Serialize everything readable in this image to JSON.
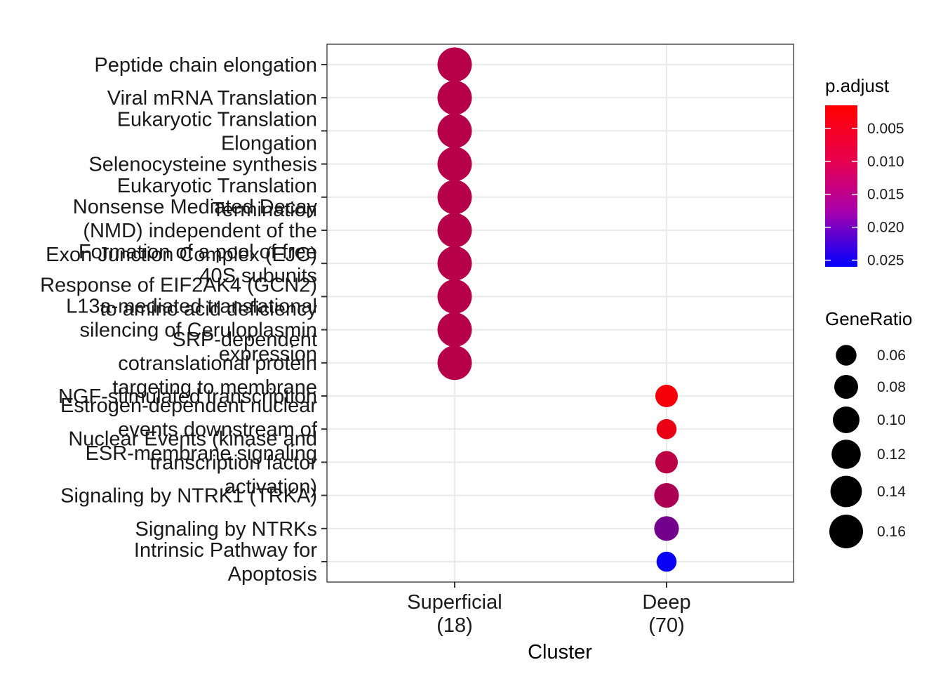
{
  "chart_data": {
    "type": "scatter",
    "xlabel": "Cluster",
    "x_categories": [
      {
        "line1": "Superficial",
        "line2": "(18)"
      },
      {
        "line1": "Deep",
        "line2": "(70)"
      }
    ],
    "y_categories": [
      [
        "Peptide chain elongation"
      ],
      [
        "Viral mRNA Translation"
      ],
      [
        "Eukaryotic Translation",
        "Elongation"
      ],
      [
        "Selenocysteine synthesis"
      ],
      [
        "Eukaryotic Translation",
        "Termination"
      ],
      [
        "Nonsense Mediated Decay",
        "(NMD) independent of the",
        "Exon Junction Complex (EJC)"
      ],
      [
        "Formation of a pool of free",
        "40S subunits"
      ],
      [
        "Response of EIF2AK4 (GCN2)",
        "to amino acid deficiency"
      ],
      [
        "L13a-mediated translational",
        "silencing of Ceruloplasmin",
        "expression"
      ],
      [
        "SRP-dependent",
        "cotranslational protein",
        "targeting to membrane"
      ],
      [
        "NGF-stimulated transcription"
      ],
      [
        "Estrogen-dependent nuclear",
        "events downstream of",
        "ESR-membrane signaling"
      ],
      [
        "Nuclear Events (kinase and",
        "transcription factor",
        "activation)"
      ],
      [
        "Signaling by NTRK1 (TRKA)"
      ],
      [
        "Signaling by NTRKs"
      ],
      [
        "Intrinsic Pathway for",
        "Apoptosis"
      ]
    ],
    "points": [
      {
        "cluster": "Superficial (18)",
        "term": "Peptide chain elongation",
        "gene_ratio": 0.167,
        "p_adjust": 0.0085
      },
      {
        "cluster": "Superficial (18)",
        "term": "Viral mRNA Translation",
        "gene_ratio": 0.167,
        "p_adjust": 0.0085
      },
      {
        "cluster": "Superficial (18)",
        "term": "Eukaryotic Translation Elongation",
        "gene_ratio": 0.167,
        "p_adjust": 0.0085
      },
      {
        "cluster": "Superficial (18)",
        "term": "Selenocysteine synthesis",
        "gene_ratio": 0.167,
        "p_adjust": 0.0085
      },
      {
        "cluster": "Superficial (18)",
        "term": "Eukaryotic Translation Termination",
        "gene_ratio": 0.167,
        "p_adjust": 0.0085
      },
      {
        "cluster": "Superficial (18)",
        "term": "Nonsense Mediated Decay (NMD) independent of the Exon Junction Complex (EJC)",
        "gene_ratio": 0.167,
        "p_adjust": 0.0085
      },
      {
        "cluster": "Superficial (18)",
        "term": "Formation of a pool of free 40S subunits",
        "gene_ratio": 0.167,
        "p_adjust": 0.0085
      },
      {
        "cluster": "Superficial (18)",
        "term": "Response of EIF2AK4 (GCN2) to amino acid deficiency",
        "gene_ratio": 0.167,
        "p_adjust": 0.0085
      },
      {
        "cluster": "Superficial (18)",
        "term": "L13a-mediated translational silencing of Ceruloplasmin expression",
        "gene_ratio": 0.167,
        "p_adjust": 0.0085
      },
      {
        "cluster": "Superficial (18)",
        "term": "SRP-dependent cotranslational protein targeting to membrane",
        "gene_ratio": 0.167,
        "p_adjust": 0.0085
      },
      {
        "cluster": "Deep (70)",
        "term": "NGF-stimulated transcription",
        "gene_ratio": 0.071,
        "p_adjust": 0.0025
      },
      {
        "cluster": "Deep (70)",
        "term": "Estrogen-dependent nuclear events downstream of ESR-membrane signaling",
        "gene_ratio": 0.057,
        "p_adjust": 0.0035
      },
      {
        "cluster": "Deep (70)",
        "term": "Nuclear Events (kinase and transcription factor activation)",
        "gene_ratio": 0.071,
        "p_adjust": 0.008
      },
      {
        "cluster": "Deep (70)",
        "term": "Signaling by NTRK1 (TRKA)",
        "gene_ratio": 0.086,
        "p_adjust": 0.0095
      },
      {
        "cluster": "Deep (70)",
        "term": "Signaling by NTRKs",
        "gene_ratio": 0.086,
        "p_adjust": 0.015
      },
      {
        "cluster": "Deep (70)",
        "term": "Intrinsic Pathway for Apoptosis",
        "gene_ratio": 0.057,
        "p_adjust": 0.025
      }
    ],
    "color_legend": {
      "title": "p.adjust",
      "ticks": [
        0.005,
        0.01,
        0.015,
        0.02,
        0.025
      ],
      "tick_labels": [
        "0.005",
        "0.010",
        "0.015",
        "0.020",
        "0.025"
      ],
      "range": [
        0.0015,
        0.026
      ],
      "low_color": "#ff0000",
      "high_color": "#0000ff"
    },
    "size_legend": {
      "title": "GeneRatio",
      "values": [
        0.06,
        0.08,
        0.1,
        0.12,
        0.14,
        0.16
      ],
      "labels": [
        "0.06",
        "0.08",
        "0.10",
        "0.12",
        "0.14",
        "0.16"
      ]
    },
    "grid": true
  }
}
